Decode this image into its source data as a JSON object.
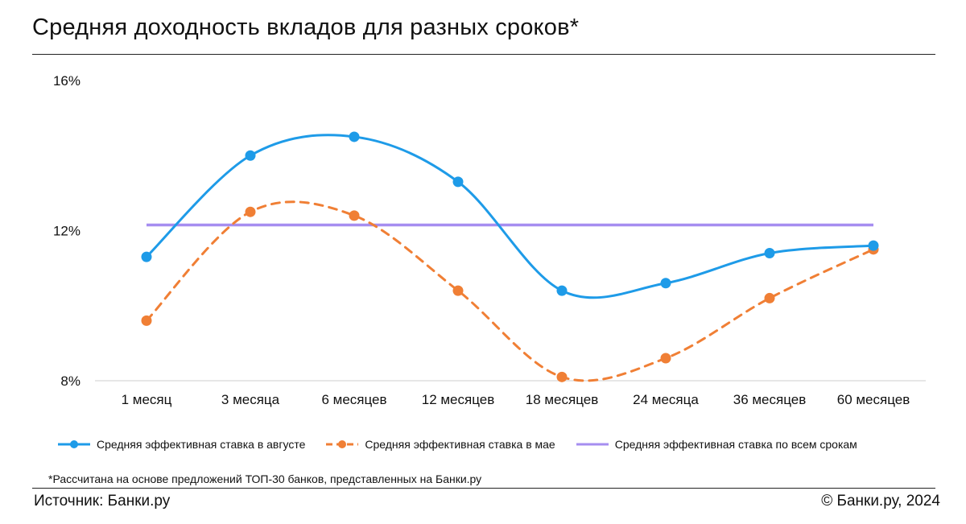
{
  "title": "Средняя доходность вкладов для разных сроков*",
  "footnote": "*Рассчитана на основе предложений ТОП-30 банков, представленных на Банки.ру",
  "source": "Источник: Банки.ру",
  "copyright": "© Банки.ру, 2024",
  "chart_data": {
    "type": "line",
    "categories": [
      "1 месяц",
      "3 месяца",
      "6 месяцев",
      "12 месяцев",
      "18 месяцев",
      "24 месяца",
      "36 месяцев",
      "60 месяцев"
    ],
    "y_ticks": [
      8,
      12,
      16
    ],
    "y_tick_labels": [
      "8%",
      "12%",
      "16%"
    ],
    "ylim": [
      8,
      16
    ],
    "grid": false,
    "legend_position": "bottom",
    "series": [
      {
        "name": "Средняя эффективная ставка в августе",
        "style": "solid-markers",
        "color": "#1e9be8",
        "values": [
          11.3,
          14.0,
          14.5,
          13.3,
          10.4,
          10.6,
          11.4,
          11.6
        ]
      },
      {
        "name": "Средняя эффективная ставка в мае",
        "style": "dashed-markers",
        "color": "#f07f35",
        "values": [
          9.6,
          12.5,
          12.4,
          10.4,
          8.1,
          8.6,
          10.2,
          11.5
        ]
      },
      {
        "name": "Средняя эффективная ставка по всем срокам",
        "style": "flat-line",
        "color": "#a68ef0",
        "values": [
          12.15,
          12.15,
          12.15,
          12.15,
          12.15,
          12.15,
          12.15,
          12.15
        ]
      }
    ]
  }
}
